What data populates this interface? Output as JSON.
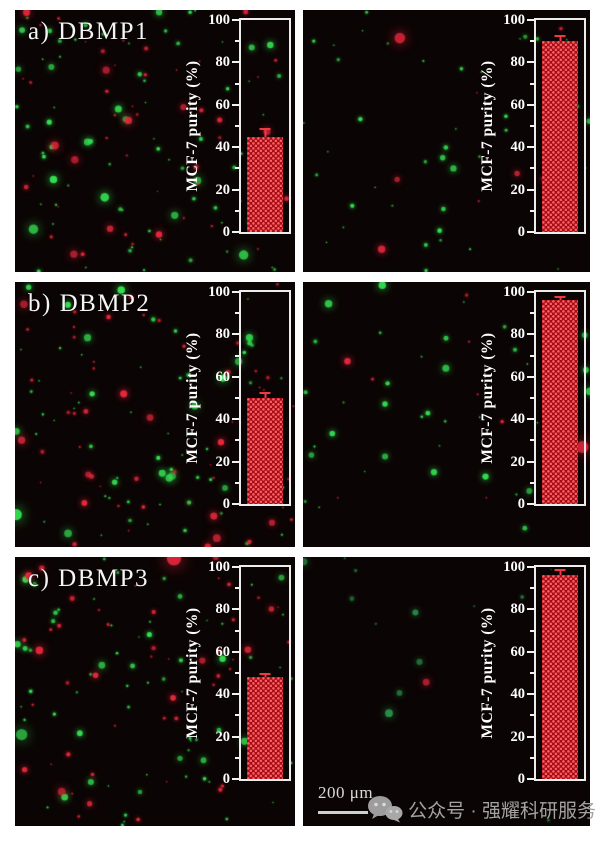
{
  "axis": {
    "ylabel": "MCF-7 purity (%)",
    "ylim": [
      0,
      100
    ],
    "yticks": [
      0,
      20,
      40,
      60,
      80,
      100
    ],
    "minor_step": 10
  },
  "colors": {
    "page_bg": "#ffffff",
    "panel_bg": "#0b0404",
    "green_cell": "#35e052",
    "green_cell_dim": "#2d9e4f",
    "red_cell": "#e8283c",
    "bar_fill": "#a30d13",
    "bar_dot": "#ff626a",
    "error_bar": "#f23842",
    "axis_frame": "#ededed",
    "tick_text": "#ffffff",
    "watermark_gray": "#a3a3a3"
  },
  "panels": [
    {
      "label": "a) DBMP1",
      "purity_percent": 45,
      "error_percent": 4,
      "cells": {
        "green": 75,
        "red": 50,
        "seed": 11,
        "dim": false
      }
    },
    {
      "label": "",
      "purity_percent": 90,
      "error_percent": 3,
      "cells": {
        "green": 42,
        "red": 8,
        "seed": 22,
        "dim": false
      }
    },
    {
      "label": "b) DBMP2",
      "purity_percent": 50,
      "error_percent": 3,
      "cells": {
        "green": 65,
        "red": 60,
        "seed": 33,
        "dim": false
      }
    },
    {
      "label": "",
      "purity_percent": 96,
      "error_percent": 2,
      "cells": {
        "green": 40,
        "red": 9,
        "seed": 44,
        "dim": false
      }
    },
    {
      "label": "c) DBMP3",
      "purity_percent": 48,
      "error_percent": 2,
      "cells": {
        "green": 70,
        "red": 55,
        "seed": 55,
        "dim": false
      }
    },
    {
      "label": "",
      "purity_percent": 96,
      "error_percent": 3,
      "cells": {
        "green": 13,
        "red": 1,
        "seed": 66,
        "dim": true
      }
    }
  ],
  "scale_bar": {
    "label": "200 μm"
  },
  "watermark": {
    "text": "公众号 · 强耀科研服务",
    "icon": "wechat-official-account-icon"
  },
  "chart_data": [
    {
      "type": "bar",
      "panel": "a) DBMP1 - left",
      "categories": [
        "MCF-7"
      ],
      "values": [
        45
      ],
      "errors": [
        4
      ],
      "ylabel": "MCF-7 purity (%)",
      "ylim": [
        0,
        100
      ],
      "yticks": [
        0,
        20,
        40,
        60,
        80,
        100
      ],
      "bar_style": "red hatched",
      "legend": "none",
      "grid": false
    },
    {
      "type": "bar",
      "panel": "a) DBMP1 - right",
      "categories": [
        "MCF-7"
      ],
      "values": [
        90
      ],
      "errors": [
        3
      ],
      "ylabel": "MCF-7 purity (%)",
      "ylim": [
        0,
        100
      ],
      "yticks": [
        0,
        20,
        40,
        60,
        80,
        100
      ],
      "bar_style": "red hatched",
      "legend": "none",
      "grid": false
    },
    {
      "type": "bar",
      "panel": "b) DBMP2 - left",
      "categories": [
        "MCF-7"
      ],
      "values": [
        50
      ],
      "errors": [
        3
      ],
      "ylabel": "MCF-7 purity (%)",
      "ylim": [
        0,
        100
      ],
      "yticks": [
        0,
        20,
        40,
        60,
        80,
        100
      ],
      "bar_style": "red hatched",
      "legend": "none",
      "grid": false
    },
    {
      "type": "bar",
      "panel": "b) DBMP2 - right",
      "categories": [
        "MCF-7"
      ],
      "values": [
        96
      ],
      "errors": [
        2
      ],
      "ylabel": "MCF-7 purity (%)",
      "ylim": [
        0,
        100
      ],
      "yticks": [
        0,
        20,
        40,
        60,
        80,
        100
      ],
      "bar_style": "red hatched",
      "legend": "none",
      "grid": false
    },
    {
      "type": "bar",
      "panel": "c) DBMP3 - left",
      "categories": [
        "MCF-7"
      ],
      "values": [
        48
      ],
      "errors": [
        2
      ],
      "ylabel": "MCF-7 purity (%)",
      "ylim": [
        0,
        100
      ],
      "yticks": [
        0,
        20,
        40,
        60,
        80,
        100
      ],
      "bar_style": "red hatched",
      "legend": "none",
      "grid": false
    },
    {
      "type": "bar",
      "panel": "c) DBMP3 - right",
      "categories": [
        "MCF-7"
      ],
      "values": [
        96
      ],
      "errors": [
        3
      ],
      "ylabel": "MCF-7 purity (%)",
      "ylim": [
        0,
        100
      ],
      "yticks": [
        0,
        20,
        40,
        60,
        80,
        100
      ],
      "bar_style": "red hatched",
      "legend": "none",
      "grid": false
    }
  ]
}
